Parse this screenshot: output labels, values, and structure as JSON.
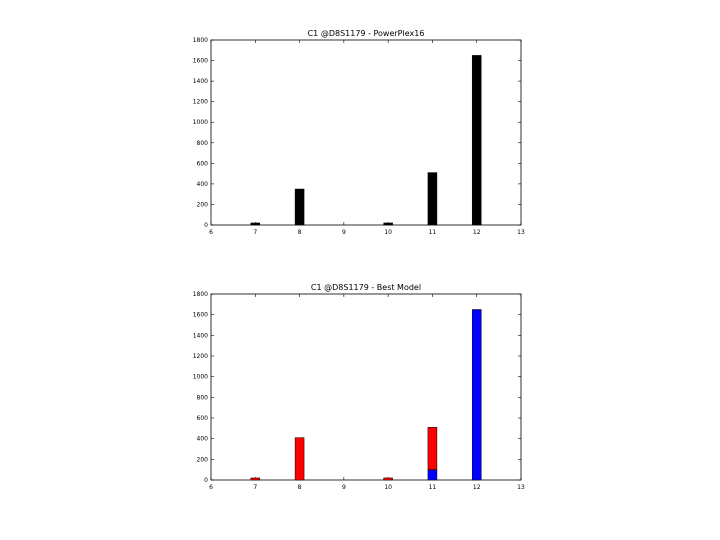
{
  "chart_data": [
    {
      "type": "bar",
      "title": "C1 @D8S1179 - PowerPlex16",
      "xlabel": "",
      "ylabel": "",
      "xlim": [
        6,
        13
      ],
      "ylim": [
        0,
        1800
      ],
      "xticks": [
        "6",
        "7",
        "8",
        "9",
        "10",
        "11",
        "12",
        "13"
      ],
      "yticks": [
        "0",
        "200",
        "400",
        "600",
        "800",
        "1000",
        "1200",
        "1400",
        "1600",
        "1800"
      ],
      "x": [
        7,
        8,
        10,
        11,
        12
      ],
      "series": [
        {
          "color": "#000000",
          "values": [
            20,
            350,
            20,
            510,
            1650
          ]
        }
      ],
      "grid": false
    },
    {
      "type": "bar",
      "stacked": true,
      "title": "C1 @D8S1179 - Best Model",
      "xlabel": "",
      "ylabel": "",
      "xlim": [
        6,
        13
      ],
      "ylim": [
        0,
        1800
      ],
      "xticks": [
        "6",
        "7",
        "8",
        "9",
        "10",
        "11",
        "12",
        "13"
      ],
      "yticks": [
        "0",
        "200",
        "400",
        "600",
        "800",
        "1000",
        "1200",
        "1400",
        "1600",
        "1800"
      ],
      "x": [
        7,
        8,
        10,
        11,
        12
      ],
      "series": [
        {
          "color": "#0000ff",
          "values": [
            0,
            0,
            0,
            100,
            1650
          ]
        },
        {
          "color": "#ff0000",
          "values": [
            20,
            410,
            20,
            410,
            0
          ]
        }
      ],
      "grid": false
    }
  ]
}
